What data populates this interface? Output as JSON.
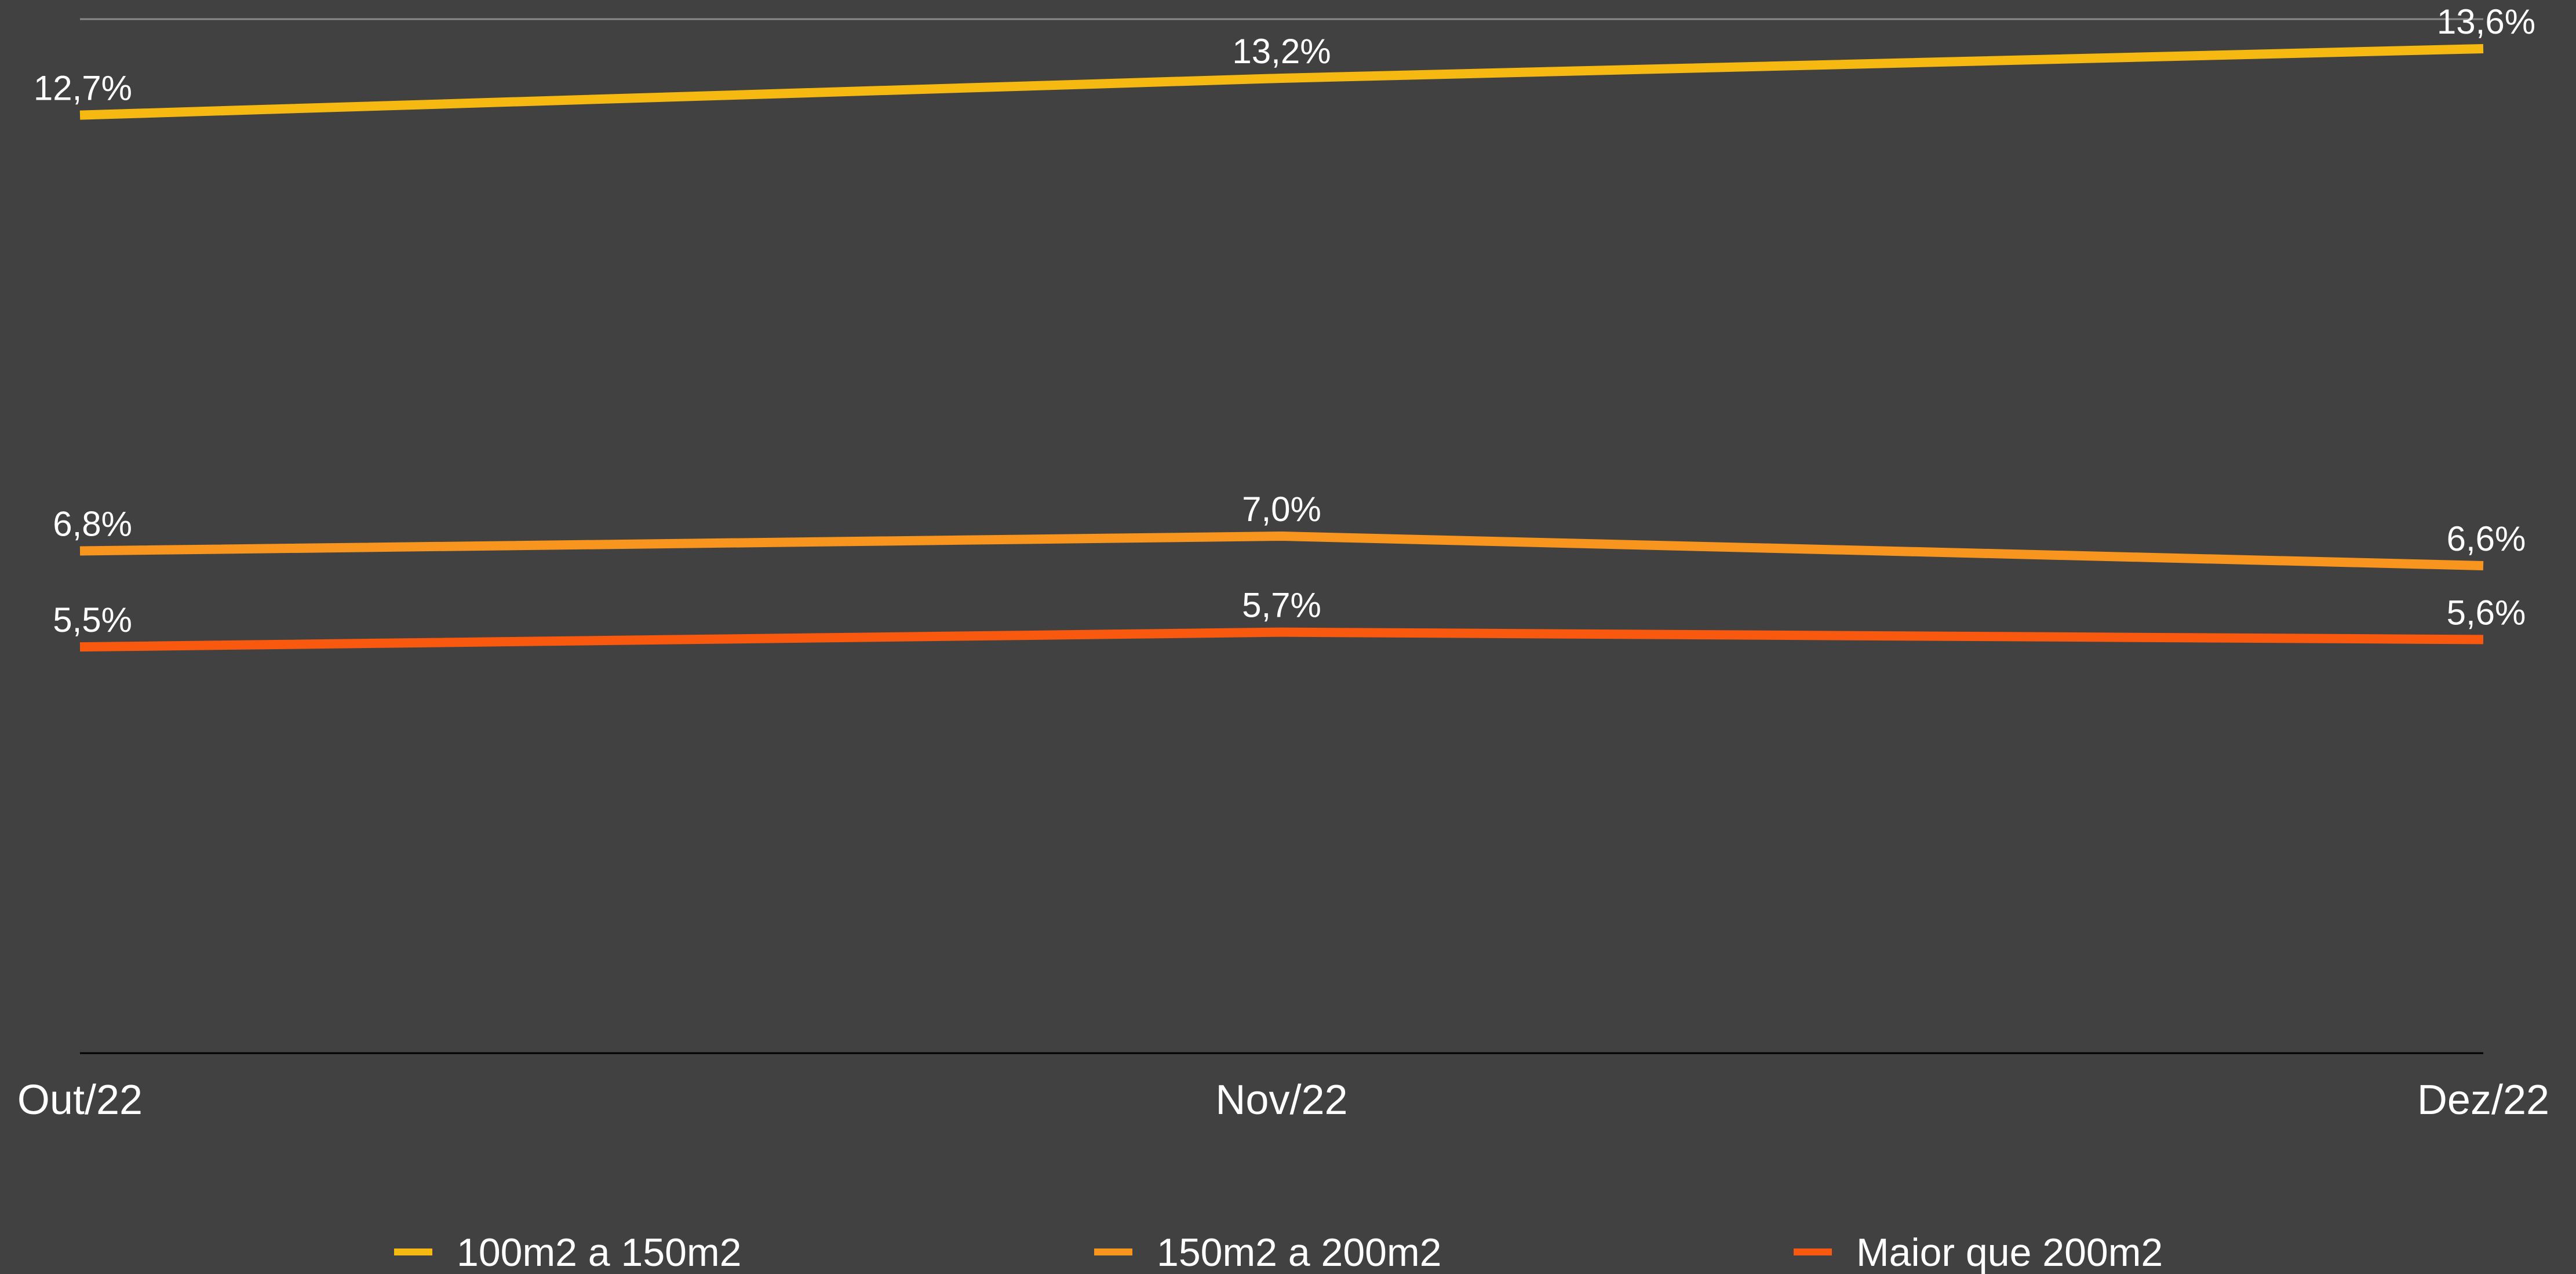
{
  "chart_data": {
    "type": "line",
    "categories": [
      "Out/22",
      "Nov/22",
      "Dez/22"
    ],
    "ylim": [
      0,
      14
    ],
    "grid": "top gridline only",
    "legend_position": "bottom",
    "series": [
      {
        "name": "100m2 a 150m2",
        "color": "#F5B911",
        "values": [
          12.7,
          13.2,
          13.6
        ],
        "labels": [
          "12,7%",
          "13,2%",
          "13,6%"
        ]
      },
      {
        "name": "150m2 a 200m2",
        "color": "#F7951E",
        "values": [
          6.8,
          7.0,
          6.6
        ],
        "labels": [
          "6,8%",
          "7,0%",
          "6,6%"
        ]
      },
      {
        "name": "Maior que 200m2",
        "color": "#F9580F",
        "values": [
          5.5,
          5.7,
          5.6
        ],
        "labels": [
          "5,5%",
          "5,7%",
          "5,6%"
        ]
      }
    ]
  },
  "colors": {
    "background": "#414141",
    "gridline": "#8a8a8a",
    "axis": "#000000",
    "text": "#ffffff"
  }
}
